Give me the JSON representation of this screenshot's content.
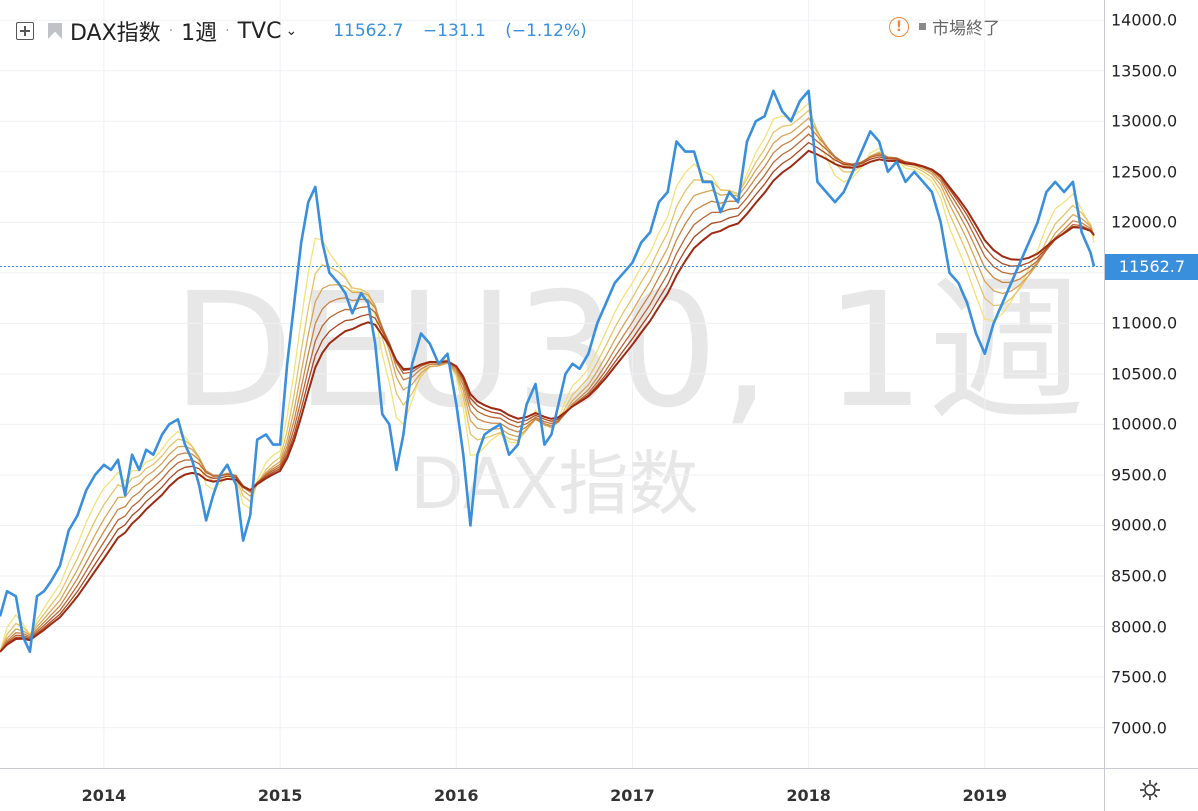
{
  "header": {
    "symbol": "DAX指数",
    "interval": "1週",
    "source": "TVC",
    "last": "11562.7",
    "change": "−131.1",
    "change_pct": "(−1.12%)",
    "market_status": "市場終了"
  },
  "watermark": {
    "main": "DEU30, 1週",
    "sub": "DAX指数"
  },
  "price_label": "11562.7",
  "colors": {
    "price": "#3a8fdc",
    "ribbon_fast": "#f3e27a",
    "ribbon_slow": "#9e2a12"
  },
  "chart_data": {
    "type": "line",
    "x_range": [
      2013.41,
      2019.62
    ],
    "ylim": [
      6600,
      14200
    ],
    "yticks": [
      "14000.0",
      "13500.0",
      "13000.0",
      "12500.0",
      "12000.0",
      "11500.0",
      "11000.0",
      "10500.0",
      "10000.0",
      "9500.0",
      "9000.0",
      "8500.0",
      "8000.0",
      "7500.0",
      "7000.0"
    ],
    "xticks": [
      "2014",
      "2015",
      "2016",
      "2017",
      "2018",
      "2019"
    ],
    "last_price": 11562.7,
    "series": [
      {
        "x": [
          2013.41,
          2013.45,
          2013.5,
          2013.54,
          2013.58,
          2013.62,
          2013.66,
          2013.7,
          2013.75,
          2013.8,
          2013.85,
          2013.9,
          2013.95,
          2014.0,
          2014.04,
          2014.08,
          2014.12,
          2014.16,
          2014.2,
          2014.24,
          2014.28,
          2014.33,
          2014.37,
          2014.42,
          2014.46,
          2014.5,
          2014.54,
          2014.58,
          2014.62,
          2014.66,
          2014.7,
          2014.75,
          2014.79,
          2014.83,
          2014.87,
          2014.92,
          2014.96,
          2015.0,
          2015.04,
          2015.08,
          2015.12,
          2015.16,
          2015.2,
          2015.24,
          2015.28,
          2015.33,
          2015.37,
          2015.41,
          2015.46,
          2015.5,
          2015.54,
          2015.58,
          2015.62,
          2015.66,
          2015.7,
          2015.75,
          2015.8,
          2015.85,
          2015.9,
          2015.95,
          2016.0,
          2016.04,
          2016.08,
          2016.12,
          2016.16,
          2016.2,
          2016.25,
          2016.3,
          2016.35,
          2016.4,
          2016.45,
          2016.5,
          2016.54,
          2016.58,
          2016.62,
          2016.66,
          2016.7,
          2016.75,
          2016.8,
          2016.85,
          2016.9,
          2016.95,
          2017.0,
          2017.05,
          2017.1,
          2017.15,
          2017.2,
          2017.25,
          2017.3,
          2017.35,
          2017.4,
          2017.45,
          2017.5,
          2017.55,
          2017.6,
          2017.65,
          2017.7,
          2017.75,
          2017.8,
          2017.85,
          2017.9,
          2017.95,
          2018.0,
          2018.05,
          2018.1,
          2018.15,
          2018.2,
          2018.25,
          2018.3,
          2018.35,
          2018.4,
          2018.45,
          2018.5,
          2018.55,
          2018.6,
          2018.65,
          2018.7,
          2018.75,
          2018.8,
          2018.85,
          2018.9,
          2018.95,
          2019.0,
          2019.05,
          2019.1,
          2019.15,
          2019.2,
          2019.25,
          2019.3,
          2019.35,
          2019.4,
          2019.45,
          2019.5,
          2019.55,
          2019.6,
          2019.62
        ],
        "values": [
          8100,
          8350,
          8300,
          7900,
          7750,
          8300,
          8350,
          8450,
          8600,
          8950,
          9100,
          9350,
          9500,
          9600,
          9550,
          9650,
          9300,
          9700,
          9550,
          9750,
          9700,
          9900,
          10000,
          10050,
          9800,
          9650,
          9400,
          9050,
          9300,
          9500,
          9600,
          9400,
          8850,
          9100,
          9850,
          9900,
          9800,
          9800,
          10600,
          11200,
          11800,
          12200,
          12350,
          11800,
          11500,
          11400,
          11300,
          11100,
          11300,
          11200,
          10800,
          10100,
          10000,
          9550,
          9900,
          10600,
          10900,
          10800,
          10600,
          10700,
          10200,
          9700,
          9000,
          9700,
          9900,
          9950,
          10000,
          9700,
          9800,
          10200,
          10400,
          9800,
          9900,
          10200,
          10500,
          10600,
          10550,
          10700,
          11000,
          11200,
          11400,
          11500,
          11600,
          11800,
          11900,
          12200,
          12300,
          12800,
          12700,
          12700,
          12400,
          12400,
          12100,
          12300,
          12200,
          12800,
          13000,
          13050,
          13300,
          13100,
          13000,
          13200,
          13300,
          12400,
          12300,
          12200,
          12300,
          12500,
          12700,
          12900,
          12800,
          12500,
          12600,
          12400,
          12500,
          12400,
          12300,
          12000,
          11500,
          11400,
          11200,
          10900,
          10700,
          11000,
          11200,
          11400,
          11600,
          11800,
          12000,
          12300,
          12400,
          12300,
          12400,
          11900,
          11700,
          11562.7
        ]
      }
    ]
  }
}
